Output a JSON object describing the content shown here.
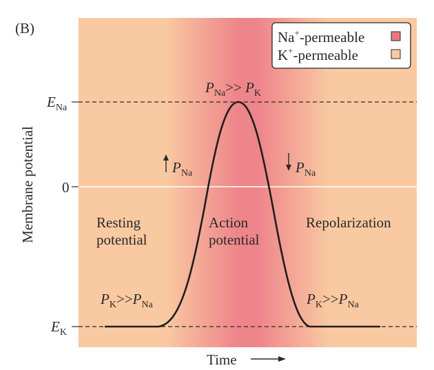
{
  "panel_label": "(B)",
  "legend": {
    "items": [
      {
        "label_main": "Na",
        "label_sup": "+",
        "label_rest": "-permeable",
        "color": "#e8797d"
      },
      {
        "label_main": "K",
        "label_sup": "+",
        "label_rest": "-permeable",
        "color": "#f9c9a1"
      }
    ]
  },
  "axes": {
    "ylabel": "Membrane potential",
    "xlabel": "Time",
    "yticks": {
      "ena": {
        "main": "E",
        "sub": "Na"
      },
      "zero": {
        "main": "0"
      },
      "ek": {
        "main": "E",
        "sub": "K"
      }
    }
  },
  "annotations": {
    "peak": {
      "p1": "P",
      "s1": "Na",
      "mid": ">> ",
      "p2": "P",
      "s2": "K"
    },
    "rise": {
      "p": "P",
      "s": "Na"
    },
    "fall": {
      "p": "P",
      "s": "Na"
    },
    "left_base": {
      "p1": "P",
      "s1": "K",
      "mid": ">>",
      "p2": "P",
      "s2": "Na"
    },
    "right_base": {
      "p1": "P",
      "s1": "K",
      "mid": ">>",
      "p2": "P",
      "s2": "Na"
    }
  },
  "phases": {
    "resting": [
      "Resting",
      "potential"
    ],
    "action": [
      "Action",
      "potential"
    ],
    "repolarization": [
      "Repolarization"
    ]
  },
  "colors": {
    "k_background": "#f9c9a1",
    "na_center": "#ef858a",
    "trace": "#1e1e1e"
  }
}
